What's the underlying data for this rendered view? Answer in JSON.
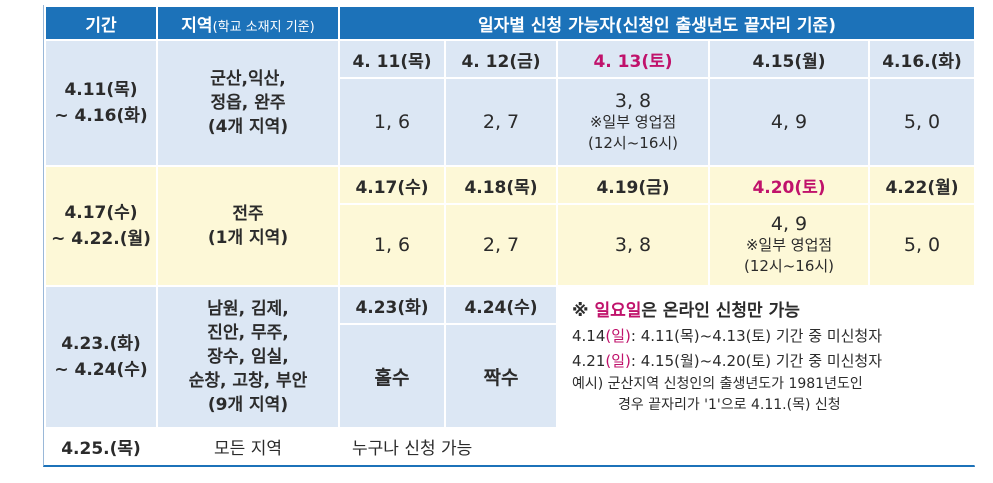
{
  "header": {
    "col1": "기간",
    "col2_main": "지역",
    "col2_sub": "(학교 소재지 기준)",
    "col3": "일자별 신청 가능자(신청인 출생년도 끝자리 기준)"
  },
  "row1": {
    "period_line1": "4.11(목)",
    "period_line2": "~ 4.16(화)",
    "region_lines": [
      "군산,익산,",
      "정읍, 완주",
      "(4개 지역)"
    ],
    "dates": [
      "4. 11(목)",
      "4. 12(금)",
      "4. 13(토)",
      "4.15(월)",
      "4.16.(화)"
    ],
    "digits": [
      "1, 6",
      "2, 7",
      "3, 8",
      "4, 9",
      "5, 0"
    ],
    "note_line1": "※일부 영업점",
    "note_line2": "(12시~16시)"
  },
  "row2": {
    "period_line1": "4.17(수)",
    "period_line2": "~ 4.22.(월)",
    "region_lines": [
      "전주",
      "(1개 지역)"
    ],
    "dates": [
      "4.17(수)",
      "4.18(목)",
      "4.19(금)",
      "4.20(토)",
      "4.22(월)"
    ],
    "digits": [
      "1, 6",
      "2, 7",
      "3, 8",
      "4, 9",
      "5, 0"
    ],
    "note_line1": "※일부 영업점",
    "note_line2": "(12시~16시)"
  },
  "row3": {
    "period_line1": "4.23.(화)",
    "period_line2": "~ 4.24(수)",
    "region_lines": [
      "남원, 김제,",
      "진안, 무주,",
      "장수, 임실,",
      "순창, 고창, 부안",
      "(9개 지역)"
    ],
    "dates": [
      "4.23(화)",
      "4.24(수)"
    ],
    "values": [
      "홀수",
      "짝수"
    ],
    "info": {
      "title_prefix": "※ ",
      "title_highlight": "일요일",
      "title_suffix": "은 온라인 신청만 가능",
      "line1_date": "4.14",
      "line1_day": "(일)",
      "line1_rest": ": 4.11(목)~4.13(토) 기간 중 미신청자",
      "line2_date": "4.21",
      "line2_day": "(일)",
      "line2_rest": ": 4.15(월)~4.20(토) 기간 중 미신청자",
      "example_line1": "예시) 군산지역 신청인의 출생년도가 1981년도인",
      "example_line2": "경우 끝자리가 '1'으로 4.11.(목) 신청"
    }
  },
  "row4": {
    "period": "4.25.(목)",
    "region": "모든 지역",
    "text": "누구나 신청 가능"
  },
  "colors": {
    "header_blue": "#1c72b9",
    "light_blue": "#dce7f4",
    "light_yellow": "#fdf8d7",
    "highlight_pink": "#c0126b"
  }
}
